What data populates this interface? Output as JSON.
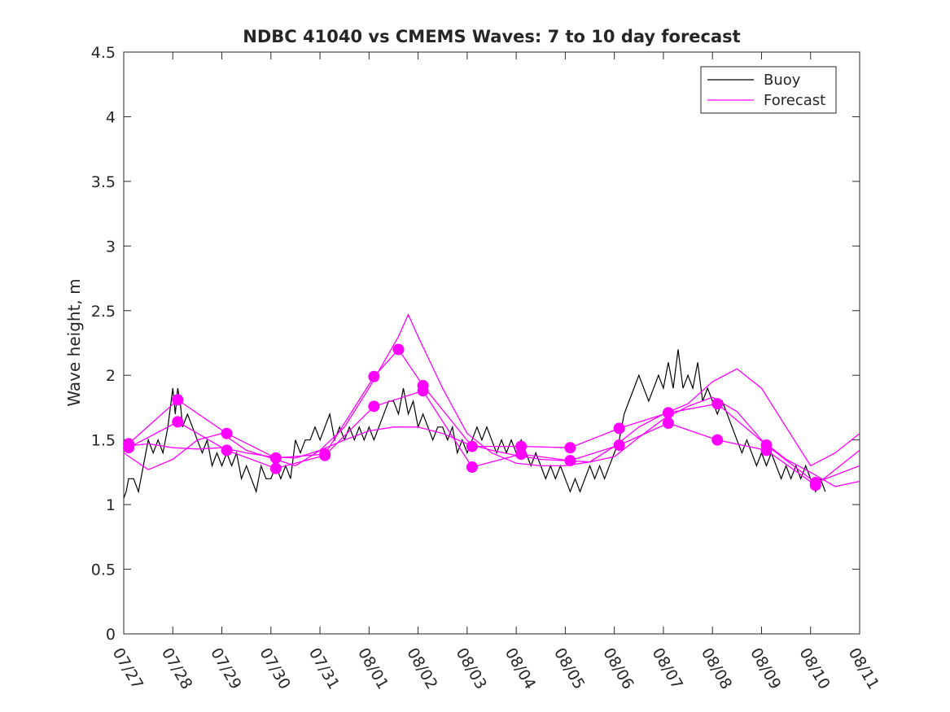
{
  "chart_data": {
    "type": "line",
    "title": "NDBC 41040 vs CMEMS Waves: 7 to 10 day forecast",
    "xlabel": "",
    "ylabel": "Wave height, m",
    "xlim": [
      0,
      15
    ],
    "ylim": [
      0,
      4.5
    ],
    "x_ticks": [
      0,
      1,
      2,
      3,
      4,
      5,
      6,
      7,
      8,
      9,
      10,
      11,
      12,
      13,
      14,
      15
    ],
    "x_tick_labels": [
      "07/27",
      "07/28",
      "07/29",
      "07/30",
      "07/31",
      "08/01",
      "08/02",
      "08/03",
      "08/04",
      "08/05",
      "08/06",
      "08/07",
      "08/08",
      "08/09",
      "08/10",
      "08/11"
    ],
    "y_ticks": [
      0,
      0.5,
      1,
      1.5,
      2,
      2.5,
      3,
      3.5,
      4,
      4.5
    ],
    "y_tick_labels": [
      "0",
      "0.5",
      "1",
      "1.5",
      "2",
      "2.5",
      "3",
      "3.5",
      "4",
      "4.5"
    ],
    "grid": false,
    "legend": {
      "position": "top-right",
      "entries": [
        {
          "name": "Buoy",
          "color": "#000000"
        },
        {
          "name": "Forecast",
          "color": "#ff00ff"
        }
      ]
    },
    "series": [
      {
        "name": "Buoy",
        "color": "#000000",
        "x": [
          0,
          0.05,
          0.1,
          0.2,
          0.3,
          0.4,
          0.5,
          0.6,
          0.7,
          0.8,
          0.9,
          1.0,
          1.05,
          1.1,
          1.15,
          1.2,
          1.3,
          1.4,
          1.5,
          1.6,
          1.7,
          1.8,
          1.9,
          2.0,
          2.1,
          2.2,
          2.3,
          2.4,
          2.5,
          2.6,
          2.7,
          2.8,
          2.9,
          3.0,
          3.1,
          3.2,
          3.3,
          3.4,
          3.5,
          3.6,
          3.7,
          3.8,
          3.9,
          4.0,
          4.1,
          4.2,
          4.3,
          4.4,
          4.5,
          4.6,
          4.7,
          4.8,
          4.9,
          5.0,
          5.1,
          5.2,
          5.3,
          5.4,
          5.5,
          5.6,
          5.7,
          5.8,
          5.9,
          6.0,
          6.1,
          6.2,
          6.3,
          6.4,
          6.5,
          6.6,
          6.7,
          6.8,
          6.9,
          7.0,
          7.1,
          7.2,
          7.3,
          7.4,
          7.5,
          7.6,
          7.7,
          7.8,
          7.9,
          8.0,
          8.1,
          8.2,
          8.3,
          8.4,
          8.5,
          8.6,
          8.7,
          8.8,
          8.9,
          9.0,
          9.1,
          9.2,
          9.3,
          9.4,
          9.5,
          9.6,
          9.7,
          9.8,
          9.9,
          10.0,
          10.1,
          10.2,
          10.3,
          10.4,
          10.5,
          10.6,
          10.7,
          10.8,
          10.9,
          11.0,
          11.1,
          11.2,
          11.3,
          11.4,
          11.5,
          11.6,
          11.7,
          11.8,
          11.9,
          12.0,
          12.1,
          12.2,
          12.3,
          12.4,
          12.5,
          12.6,
          12.7,
          12.8,
          12.9,
          13.0,
          13.1,
          13.2,
          13.3,
          13.4,
          13.5,
          13.6,
          13.7,
          13.8,
          13.9,
          14.0,
          14.1,
          14.2,
          14.3
        ],
        "y": [
          1.05,
          1.1,
          1.2,
          1.2,
          1.1,
          1.3,
          1.5,
          1.4,
          1.5,
          1.4,
          1.6,
          1.9,
          1.7,
          1.9,
          1.8,
          1.6,
          1.7,
          1.6,
          1.5,
          1.4,
          1.5,
          1.3,
          1.4,
          1.3,
          1.4,
          1.3,
          1.4,
          1.2,
          1.3,
          1.2,
          1.1,
          1.3,
          1.2,
          1.2,
          1.3,
          1.2,
          1.3,
          1.2,
          1.5,
          1.4,
          1.5,
          1.5,
          1.6,
          1.5,
          1.6,
          1.7,
          1.5,
          1.6,
          1.5,
          1.6,
          1.5,
          1.6,
          1.5,
          1.6,
          1.5,
          1.6,
          1.7,
          1.8,
          1.8,
          1.7,
          1.9,
          1.7,
          1.8,
          1.6,
          1.7,
          1.6,
          1.5,
          1.6,
          1.6,
          1.5,
          1.6,
          1.4,
          1.5,
          1.4,
          1.5,
          1.6,
          1.5,
          1.6,
          1.5,
          1.4,
          1.5,
          1.4,
          1.5,
          1.4,
          1.5,
          1.4,
          1.3,
          1.4,
          1.3,
          1.2,
          1.3,
          1.2,
          1.3,
          1.2,
          1.1,
          1.2,
          1.1,
          1.2,
          1.3,
          1.2,
          1.3,
          1.2,
          1.3,
          1.4,
          1.5,
          1.7,
          1.8,
          1.9,
          2.0,
          1.9,
          1.8,
          1.9,
          2.0,
          1.9,
          2.1,
          1.9,
          2.2,
          1.9,
          2.0,
          1.9,
          2.1,
          1.8,
          1.9,
          1.8,
          1.7,
          1.8,
          1.7,
          1.6,
          1.5,
          1.4,
          1.5,
          1.4,
          1.3,
          1.4,
          1.3,
          1.4,
          1.3,
          1.2,
          1.3,
          1.2,
          1.3,
          1.2,
          1.3,
          1.2,
          1.1,
          1.2,
          1.1
        ]
      },
      {
        "name": "Forecast",
        "color": "#ff00ff",
        "x": [
          0.1,
          1.1,
          2.1,
          3.1,
          4.1,
          5.1,
          5.6,
          6.1,
          7.1,
          8.1,
          9.1,
          10.1,
          11.1,
          12.1,
          13.1,
          14.1,
          15.0
        ],
        "y": [
          1.47,
          1.81,
          1.55,
          1.36,
          1.39,
          1.99,
          2.2,
          1.92,
          1.45,
          1.45,
          1.44,
          1.59,
          1.71,
          1.78,
          1.46,
          1.17,
          1.3
        ]
      },
      {
        "name": "Forecast",
        "color": "#ff00ff",
        "x": [
          0.1,
          1.1,
          2.1,
          3.1,
          4.1,
          5.1,
          6.1,
          7.1,
          8.1,
          9.1,
          10.1,
          11.1,
          12.1,
          13.1,
          14.1,
          15.0
        ],
        "y": [
          1.44,
          1.64,
          1.42,
          1.28,
          1.38,
          1.76,
          1.88,
          1.29,
          1.39,
          1.34,
          1.46,
          1.63,
          1.5,
          1.42,
          1.15,
          1.42
        ]
      },
      {
        "name": "Forecast",
        "color": "#ff00ff",
        "x": [
          0,
          0.5,
          1.0,
          1.5,
          2.0,
          2.5,
          3.0,
          3.5,
          4.0,
          4.5,
          5.0,
          5.5,
          6.0,
          6.5,
          7.0,
          7.5,
          8.0,
          8.5,
          9.0,
          9.5,
          10.0,
          10.5,
          11.0,
          11.5,
          12.0,
          12.5,
          13.0,
          13.5,
          14.0,
          14.5,
          15.0
        ],
        "y": [
          1.45,
          1.47,
          1.44,
          1.43,
          1.44,
          1.4,
          1.37,
          1.36,
          1.42,
          1.5,
          1.57,
          1.6,
          1.6,
          1.55,
          1.47,
          1.42,
          1.38,
          1.35,
          1.34,
          1.33,
          1.37,
          1.52,
          1.66,
          1.76,
          1.83,
          1.72,
          1.5,
          1.35,
          1.25,
          1.14,
          1.18
        ]
      },
      {
        "name": "Forecast",
        "color": "#ff00ff",
        "x": [
          0,
          0.5,
          1.0,
          1.5,
          2.0,
          2.5,
          3.0,
          3.5,
          4.0,
          4.5,
          5.0,
          5.3,
          5.6,
          5.8,
          6.0,
          6.5,
          7.0,
          7.5,
          8.0,
          8.5,
          9.0,
          9.5,
          10.0,
          10.5,
          11.0,
          11.5,
          12.0,
          12.5,
          13.0,
          13.5,
          14.0,
          14.5,
          15.0
        ],
        "y": [
          1.4,
          1.27,
          1.35,
          1.5,
          1.55,
          1.42,
          1.36,
          1.3,
          1.42,
          1.6,
          1.9,
          2.1,
          2.3,
          2.47,
          2.3,
          1.9,
          1.55,
          1.4,
          1.32,
          1.3,
          1.3,
          1.33,
          1.45,
          1.6,
          1.7,
          1.78,
          1.95,
          2.05,
          1.9,
          1.6,
          1.3,
          1.4,
          1.55
        ]
      }
    ]
  }
}
